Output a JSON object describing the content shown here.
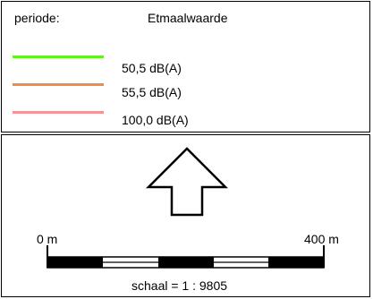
{
  "legend": {
    "periode_label": "periode:",
    "periode_value": "Etmaalwaarde",
    "items": [
      {
        "label": "50,5 dB(A)",
        "color": "#66ee22"
      },
      {
        "label": "55,5 dB(A)",
        "color": "#f28a4a"
      },
      {
        "label": "100,0 dB(A)",
        "color": "#f2949a"
      }
    ]
  },
  "map": {
    "north_arrow": "north-arrow-icon",
    "scale_start": "0 m",
    "scale_end": "400 m",
    "scale_text": "schaal = 1 : 9805"
  }
}
